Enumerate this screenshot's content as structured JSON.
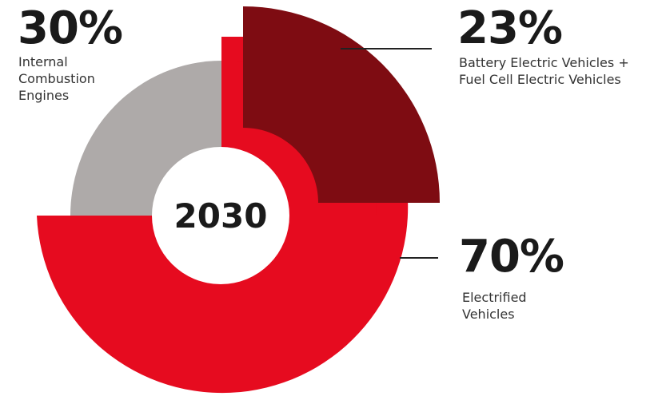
{
  "chart_data": {
    "type": "pie",
    "center_label": "2030",
    "slices": [
      {
        "label_pct": "30%",
        "description": "Internal\nCombustion\nEngines",
        "value": 30,
        "color": "#aeaaa9"
      },
      {
        "label_pct": "23%",
        "description": "Battery Electric Vehicles +\nFuel Cell Electric Vehicles",
        "value": 23,
        "color": "#7e0c12"
      },
      {
        "label_pct": "70%",
        "description": "Electrified\nVehicles",
        "value": 70,
        "color": "#e60b1f"
      }
    ]
  },
  "colors": {
    "ice": "#aeaaa9",
    "bev_fcev": "#7e0c12",
    "electrified": "#e60b1f",
    "leader": "#222222"
  }
}
